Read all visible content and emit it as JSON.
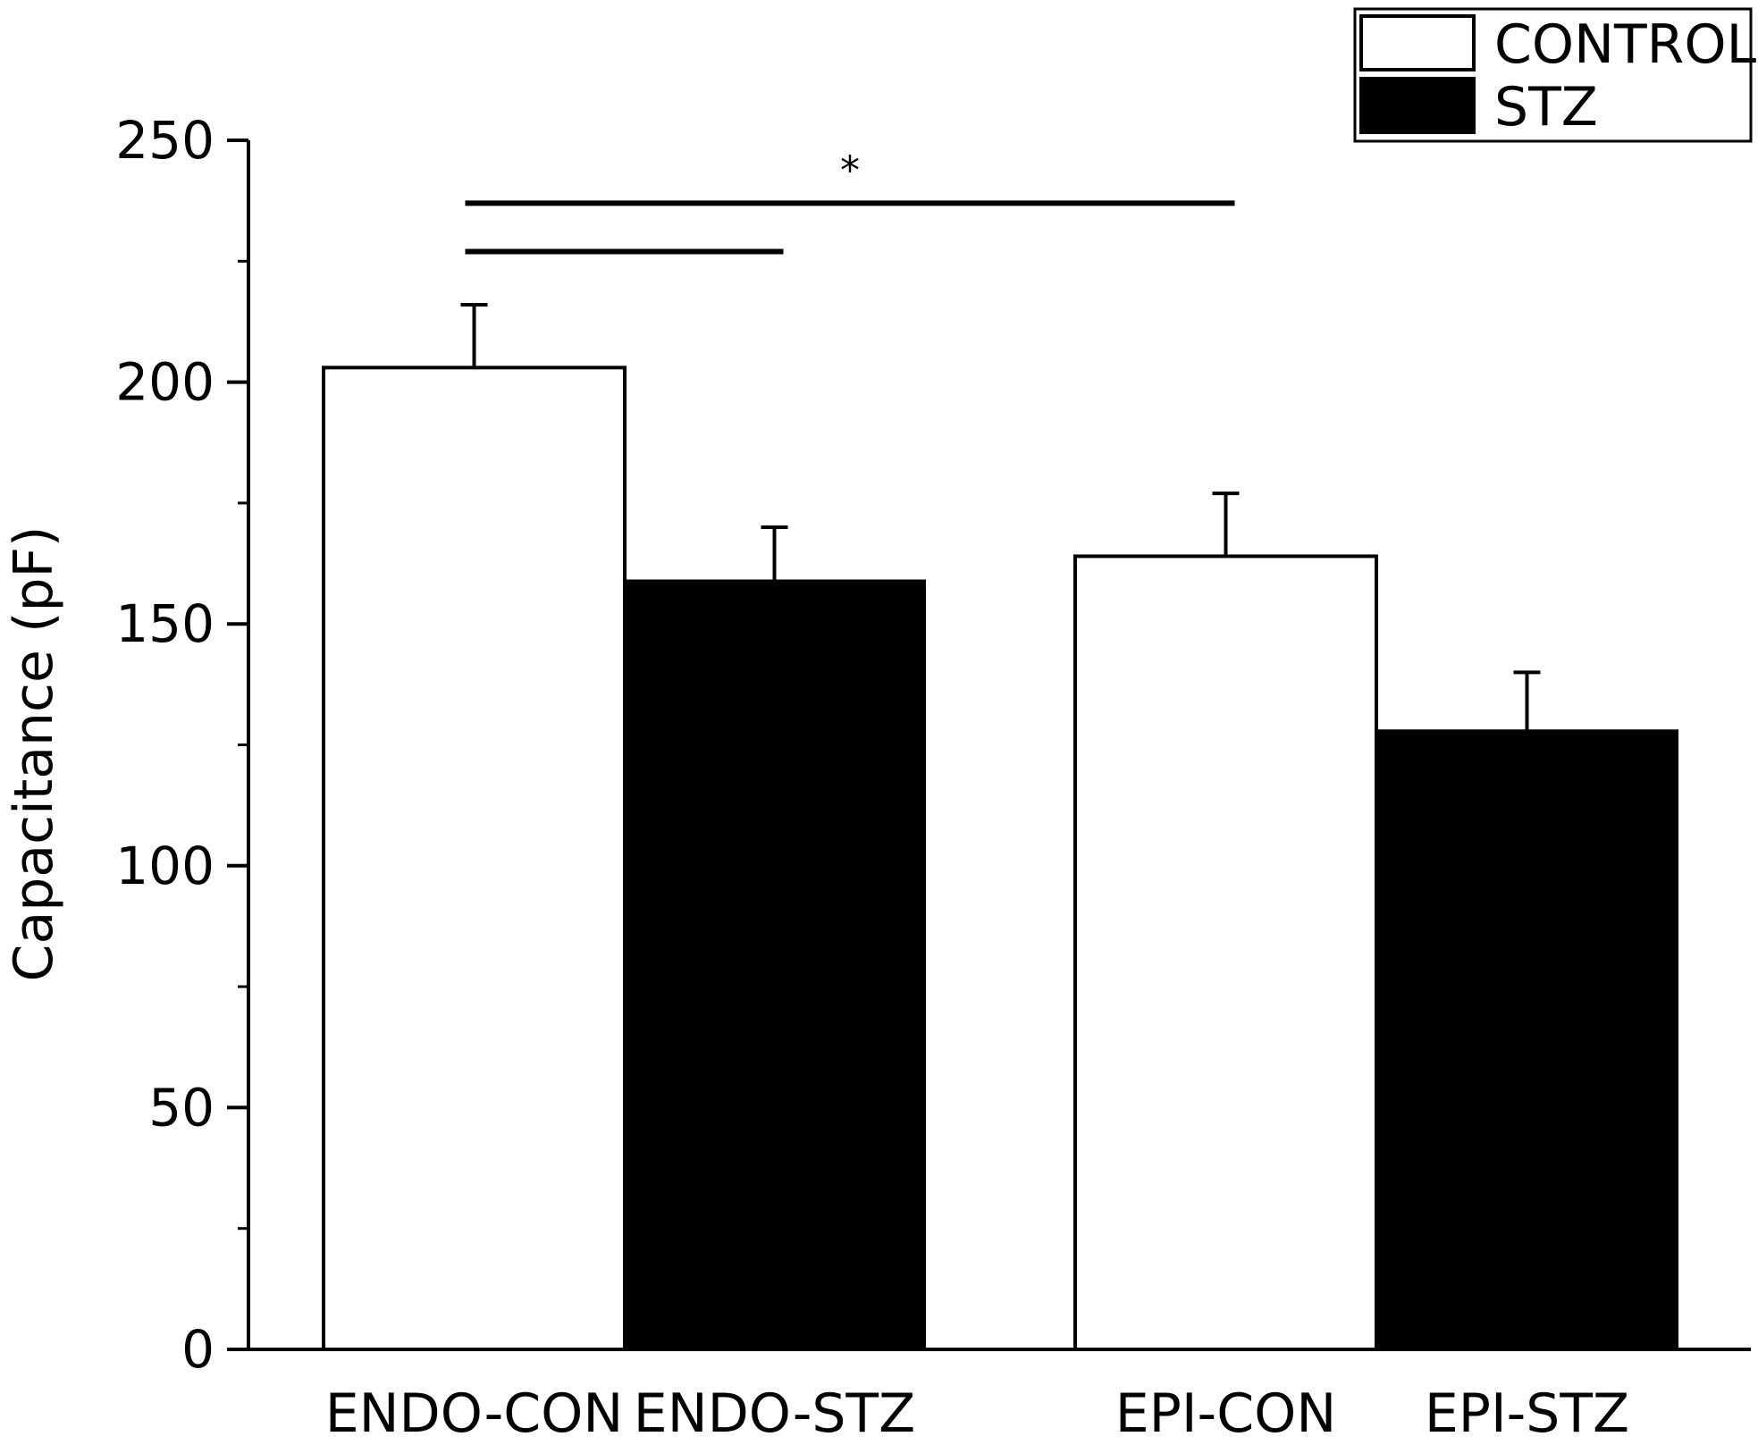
{
  "chart_data": {
    "type": "bar",
    "ylabel": "Capacitance (pF)",
    "ylim": [
      0,
      250
    ],
    "yticks": [
      0,
      50,
      100,
      150,
      200,
      250
    ],
    "minor_step": 25,
    "grid": false,
    "legend_position": "top-right",
    "legend": [
      {
        "name": "CONTROL",
        "fill": "#ffffff"
      },
      {
        "name": "STZ",
        "fill": "#000000"
      }
    ],
    "bars": [
      {
        "category": "ENDO-CON",
        "value": 203,
        "error": 13,
        "series": "CONTROL"
      },
      {
        "category": "ENDO-STZ",
        "value": 159,
        "error": 11,
        "series": "STZ"
      },
      {
        "category": "EPI-CON",
        "value": 164,
        "error": 13,
        "series": "CONTROL"
      },
      {
        "category": "EPI-STZ",
        "value": 128,
        "error": 12,
        "series": "STZ"
      }
    ],
    "significance": [
      {
        "from": "ENDO-CON",
        "to": "EPI-CON",
        "y": 237,
        "label": "*"
      },
      {
        "from": "ENDO-CON",
        "to": "ENDO-STZ",
        "y": 227,
        "label": ""
      }
    ]
  }
}
